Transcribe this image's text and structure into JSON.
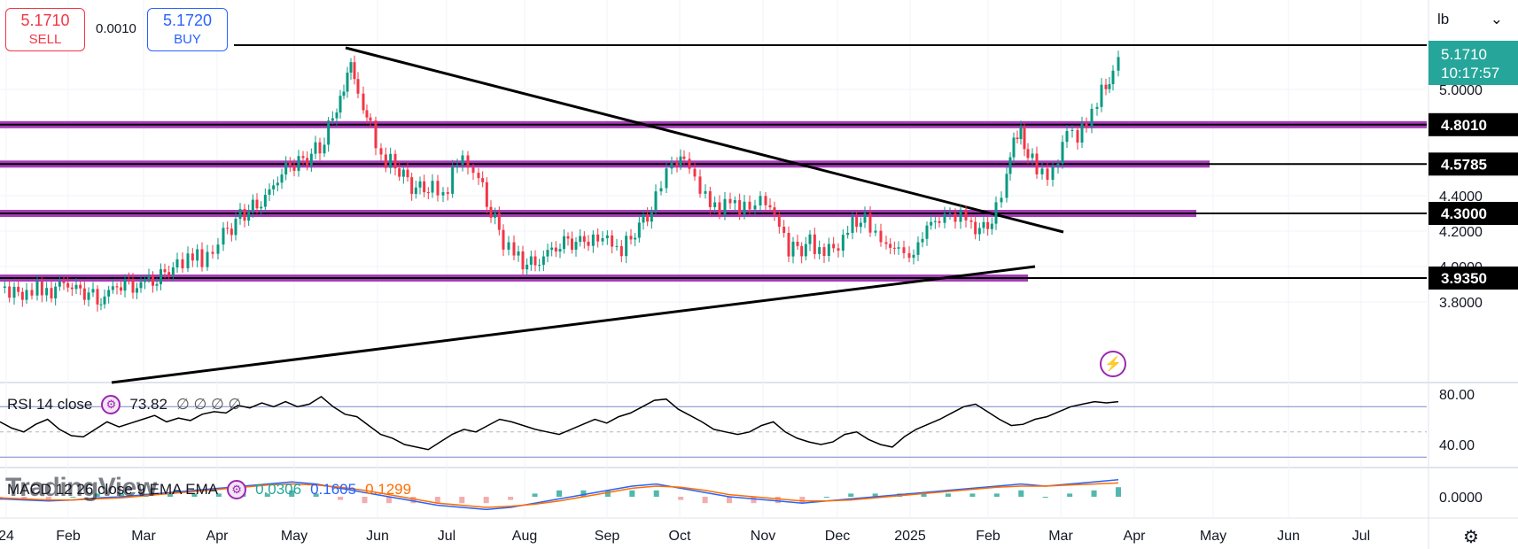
{
  "trade": {
    "sell_price": "5.1710",
    "sell_label": "SELL",
    "spread": "0.0010",
    "buy_price": "5.1720",
    "buy_label": "BUY"
  },
  "unit_selector": {
    "value": "lb",
    "icon": "chevron-down-icon"
  },
  "rsi_legend": {
    "name": "RSI 14 close",
    "value": "73.82",
    "extras": "∅ ∅ ∅ ∅"
  },
  "macd_legend": {
    "name": "MACD 12 26 close 9 EMA EMA",
    "hist": "0.0306",
    "macd": "0.1605",
    "signal": "0.1299"
  },
  "watermark": "TradingView",
  "colors": {
    "up": "#089981",
    "down": "#f23645",
    "level": "#9c27b0",
    "macd": "#2962ff",
    "signal": "#ff6d00",
    "price_tag": "#26a69a"
  },
  "price_badge": {
    "price": "5.1710",
    "countdown": "10:17:57"
  },
  "chart_data": [
    {
      "type": "candlestick",
      "y_ticks": [
        5.0,
        4.4,
        4.2,
        4.0,
        3.8
      ],
      "y_tick_labels": [
        "5.0000",
        "4.4000",
        "4.2000",
        "4.0000",
        "3.8000"
      ],
      "level_labels": [
        "4.8010",
        "4.5785",
        "4.3000",
        "3.9350"
      ],
      "levels": [
        4.801,
        4.5785,
        4.3,
        3.935
      ],
      "x_labels": [
        "24",
        "Feb",
        "Mar",
        "Apr",
        "May",
        "Jun",
        "Jul",
        "Aug",
        "Sep",
        "Oct",
        "Nov",
        "Dec",
        "2025",
        "Feb",
        "Mar",
        "Apr",
        "May",
        "Jun",
        "Jul"
      ],
      "close_path": [
        [
          0,
          3.88
        ],
        [
          16,
          3.86
        ],
        [
          30,
          3.85
        ],
        [
          42,
          3.87
        ],
        [
          58,
          3.86
        ],
        [
          72,
          3.91
        ],
        [
          86,
          3.87
        ],
        [
          100,
          3.85
        ],
        [
          110,
          3.82
        ],
        [
          118,
          3.83
        ],
        [
          132,
          3.9
        ],
        [
          150,
          3.89
        ],
        [
          168,
          3.92
        ],
        [
          186,
          3.95
        ],
        [
          200,
          4.03
        ],
        [
          212,
          4.06
        ],
        [
          228,
          4.04
        ],
        [
          240,
          4.1
        ],
        [
          252,
          4.17
        ],
        [
          266,
          4.26
        ],
        [
          276,
          4.31
        ],
        [
          290,
          4.34
        ],
        [
          304,
          4.42
        ],
        [
          318,
          4.53
        ],
        [
          332,
          4.59
        ],
        [
          342,
          4.6
        ],
        [
          356,
          4.65
        ],
        [
          366,
          4.7
        ],
        [
          380,
          4.92
        ],
        [
          388,
          5.01
        ],
        [
          396,
          5.13
        ],
        [
          404,
          4.93
        ],
        [
          410,
          4.9
        ],
        [
          418,
          4.79
        ],
        [
          430,
          4.62
        ],
        [
          446,
          4.57
        ],
        [
          460,
          4.48
        ],
        [
          474,
          4.43
        ],
        [
          488,
          4.46
        ],
        [
          500,
          4.4
        ],
        [
          516,
          4.58
        ],
        [
          528,
          4.6
        ],
        [
          540,
          4.49
        ],
        [
          554,
          4.31
        ],
        [
          568,
          4.14
        ],
        [
          580,
          4.06
        ],
        [
          590,
          4.03
        ],
        [
          604,
          4.01
        ],
        [
          618,
          4.08
        ],
        [
          632,
          4.12
        ],
        [
          650,
          4.15
        ],
        [
          664,
          4.13
        ],
        [
          680,
          4.18
        ],
        [
          696,
          4.09
        ],
        [
          712,
          4.16
        ],
        [
          726,
          4.26
        ],
        [
          740,
          4.37
        ],
        [
          752,
          4.55
        ],
        [
          764,
          4.62
        ],
        [
          772,
          4.65
        ],
        [
          784,
          4.49
        ],
        [
          796,
          4.38
        ],
        [
          812,
          4.33
        ],
        [
          824,
          4.35
        ],
        [
          840,
          4.34
        ],
        [
          852,
          4.33
        ],
        [
          864,
          4.38
        ],
        [
          874,
          4.28
        ],
        [
          890,
          4.11
        ],
        [
          900,
          4.1
        ],
        [
          914,
          4.13
        ],
        [
          930,
          4.08
        ],
        [
          946,
          4.12
        ],
        [
          962,
          4.24
        ],
        [
          976,
          4.28
        ],
        [
          988,
          4.19
        ],
        [
          1000,
          4.14
        ],
        [
          1014,
          4.08
        ],
        [
          1026,
          4.05
        ],
        [
          1036,
          4.12
        ],
        [
          1046,
          4.22
        ],
        [
          1060,
          4.27
        ],
        [
          1072,
          4.31
        ],
        [
          1084,
          4.29
        ],
        [
          1096,
          4.24
        ],
        [
          1110,
          4.2
        ],
        [
          1124,
          4.32
        ],
        [
          1136,
          4.5
        ],
        [
          1144,
          4.72
        ],
        [
          1152,
          4.8
        ],
        [
          1160,
          4.63
        ],
        [
          1170,
          4.55
        ],
        [
          1182,
          4.53
        ],
        [
          1194,
          4.55
        ],
        [
          1204,
          4.82
        ],
        [
          1216,
          4.69
        ],
        [
          1226,
          4.84
        ],
        [
          1238,
          4.92
        ],
        [
          1248,
          5.03
        ],
        [
          1256,
          5.12
        ],
        [
          1262,
          5.17
        ]
      ],
      "ohlc_note": "daily candlesticks; values approximated from chart"
    },
    {
      "type": "line",
      "title": "RSI 14 close",
      "y_ticks": [
        80.0,
        40.0
      ],
      "bands": [
        70,
        30
      ],
      "values": [
        58,
        53,
        50,
        56,
        60,
        52,
        47,
        46,
        52,
        58,
        54,
        57,
        60,
        63,
        58,
        61,
        59,
        64,
        66,
        65,
        71,
        69,
        73,
        70,
        74,
        70,
        72,
        78,
        70,
        64,
        62,
        55,
        48,
        45,
        40,
        38,
        36,
        42,
        48,
        52,
        50,
        55,
        60,
        58,
        55,
        52,
        50,
        48,
        52,
        56,
        60,
        57,
        62,
        65,
        70,
        75,
        76,
        68,
        63,
        58,
        52,
        50,
        48,
        50,
        55,
        58,
        50,
        45,
        42,
        40,
        42,
        48,
        50,
        44,
        40,
        38,
        46,
        52,
        56,
        60,
        65,
        70,
        72,
        66,
        60,
        55,
        56,
        60,
        62,
        66,
        70,
        72,
        74,
        73,
        74
      ]
    },
    {
      "type": "bar",
      "title": "MACD 12 26 close 9 EMA EMA",
      "y_ticks": [
        0.0
      ],
      "macd": [
        -0.02,
        -0.03,
        -0.04,
        -0.03,
        -0.01,
        0.0,
        0.02,
        0.04,
        0.06,
        0.08,
        0.1,
        0.12,
        0.14,
        0.12,
        0.08,
        0.04,
        0.0,
        -0.04,
        -0.08,
        -0.1,
        -0.12,
        -0.1,
        -0.06,
        -0.02,
        0.02,
        0.06,
        0.1,
        0.12,
        0.08,
        0.04,
        0.0,
        -0.02,
        -0.04,
        -0.06,
        -0.04,
        -0.02,
        0.0,
        0.02,
        0.04,
        0.06,
        0.08,
        0.1,
        0.12,
        0.1,
        0.12,
        0.14,
        0.16
      ],
      "signal": [
        -0.01,
        -0.02,
        -0.03,
        -0.03,
        -0.02,
        -0.01,
        0.01,
        0.03,
        0.05,
        0.07,
        0.09,
        0.11,
        0.12,
        0.11,
        0.09,
        0.06,
        0.02,
        -0.02,
        -0.06,
        -0.08,
        -0.1,
        -0.09,
        -0.07,
        -0.04,
        0.0,
        0.04,
        0.08,
        0.1,
        0.09,
        0.06,
        0.02,
        0.0,
        -0.02,
        -0.04,
        -0.04,
        -0.03,
        -0.01,
        0.01,
        0.03,
        0.05,
        0.07,
        0.09,
        0.1,
        0.1,
        0.11,
        0.12,
        0.13
      ]
    }
  ]
}
